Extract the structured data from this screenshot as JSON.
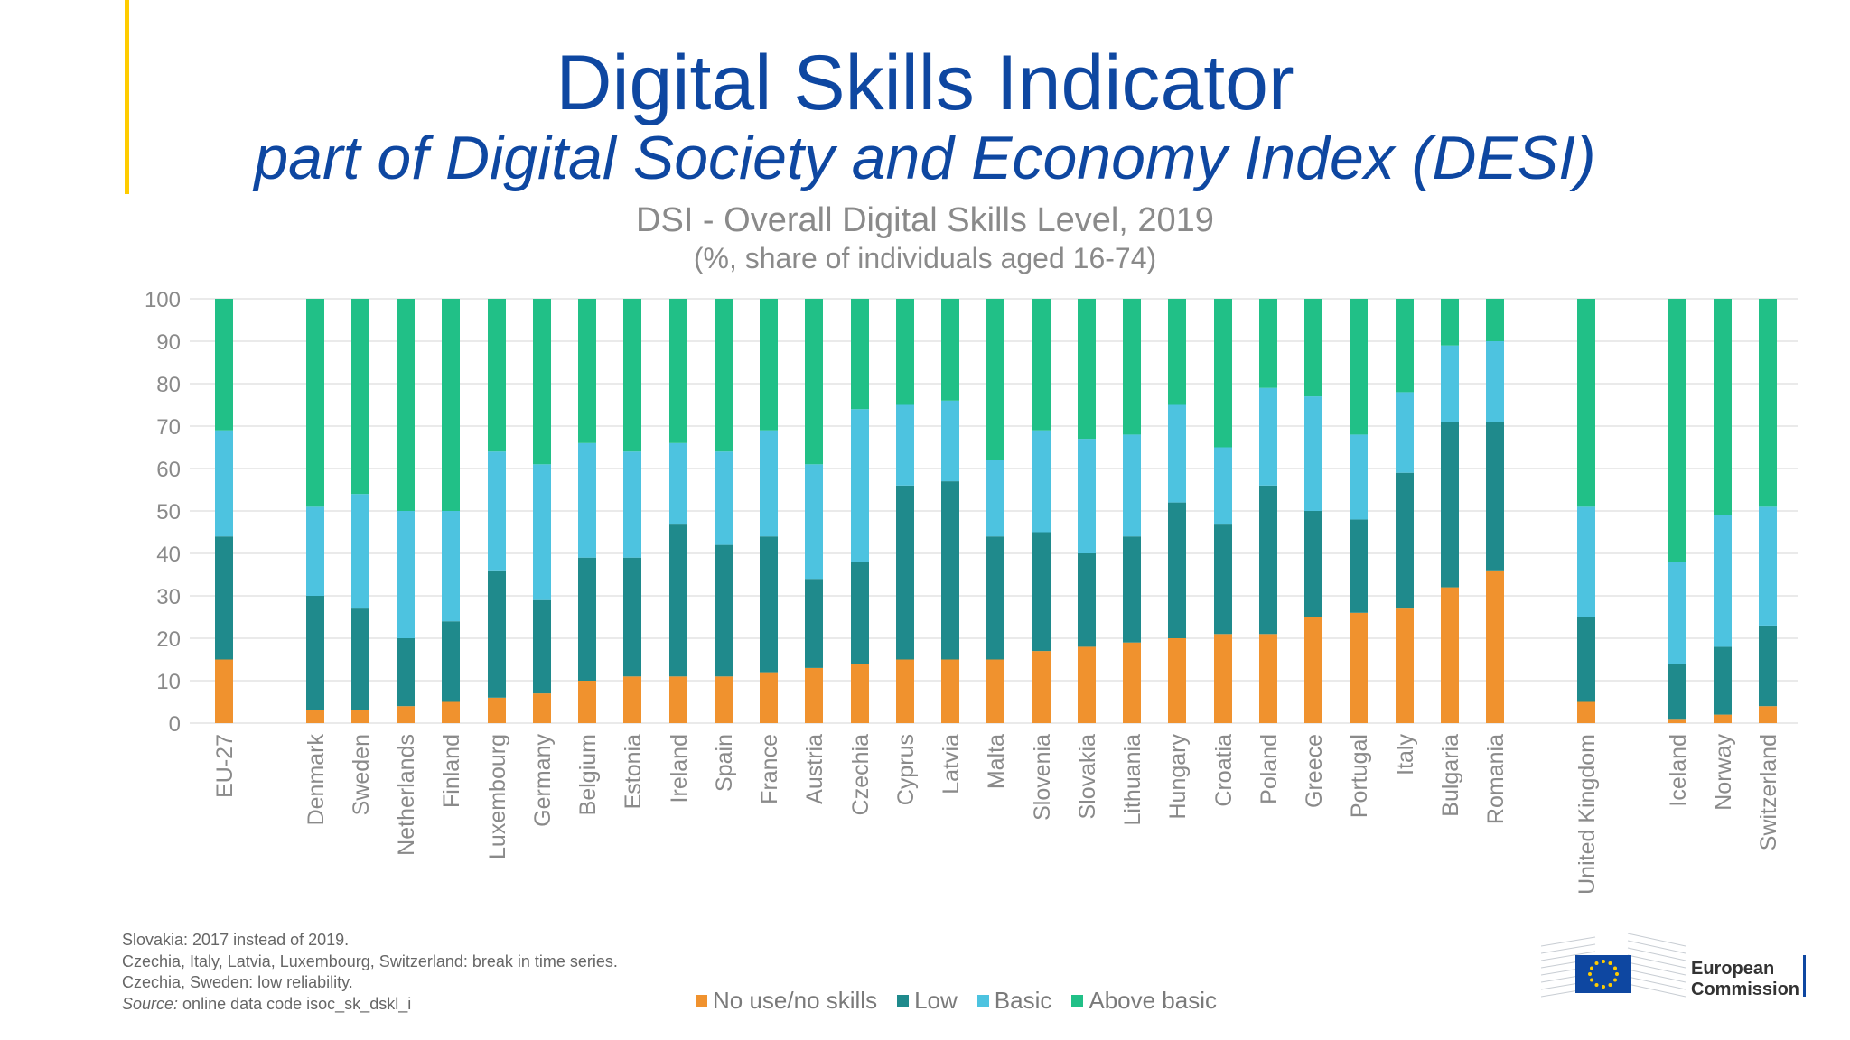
{
  "header": {
    "title": "Digital Skills Indicator",
    "subtitle": "part of Digital Society and Economy Index (DESI)"
  },
  "colors": {
    "accent_bar": "#ffcc00",
    "title": "#0e47a1"
  },
  "chart_data": {
    "type": "bar",
    "stacked": true,
    "title": "DSI - Overall Digital Skills Level, 2019",
    "unit_label": "(%, share of individuals aged 16-74)",
    "xlabel": "",
    "ylabel": "",
    "ylim": [
      0,
      100
    ],
    "yticks": [
      0,
      10,
      20,
      30,
      40,
      50,
      60,
      70,
      80,
      90,
      100
    ],
    "grid": true,
    "legend_position": "bottom",
    "categories": [
      "EU-27",
      "Denmark",
      "Sweden",
      "Netherlands",
      "Finland",
      "Luxembourg",
      "Germany",
      "Belgium",
      "Estonia",
      "Ireland",
      "Spain",
      "France",
      "Austria",
      "Czechia",
      "Cyprus",
      "Latvia",
      "Malta",
      "Slovenia",
      "Slovakia",
      "Lithuania",
      "Hungary",
      "Croatia",
      "Poland",
      "Greece",
      "Portugal",
      "Italy",
      "Bulgaria",
      "Romania",
      "United Kingdom",
      "Iceland",
      "Norway",
      "Switzerland"
    ],
    "series": [
      {
        "name": "No use/no skills",
        "color": "#f0922e",
        "values": [
          15,
          3,
          3,
          4,
          5,
          6,
          7,
          10,
          11,
          11,
          11,
          12,
          13,
          14,
          15,
          15,
          15,
          17,
          18,
          19,
          20,
          21,
          21,
          25,
          26,
          27,
          32,
          36,
          5,
          1,
          2,
          4
        ]
      },
      {
        "name": "Low",
        "color": "#1f8a8c",
        "values": [
          29,
          27,
          24,
          16,
          19,
          30,
          22,
          29,
          28,
          36,
          31,
          32,
          21,
          24,
          41,
          42,
          29,
          28,
          22,
          25,
          32,
          26,
          35,
          25,
          22,
          32,
          39,
          35,
          20,
          13,
          16,
          19
        ]
      },
      {
        "name": "Basic",
        "color": "#4dc3e0",
        "values": [
          25,
          21,
          27,
          30,
          26,
          28,
          32,
          27,
          25,
          19,
          22,
          25,
          27,
          36,
          19,
          19,
          18,
          24,
          27,
          24,
          23,
          18,
          23,
          27,
          20,
          19,
          18,
          19,
          26,
          24,
          31,
          28
        ]
      },
      {
        "name": "Above basic",
        "color": "#21c087",
        "values": [
          31,
          49,
          46,
          50,
          50,
          36,
          39,
          34,
          36,
          34,
          36,
          31,
          39,
          26,
          25,
          24,
          38,
          31,
          33,
          32,
          25,
          35,
          21,
          23,
          32,
          22,
          11,
          10,
          49,
          62,
          51,
          49
        ]
      }
    ]
  },
  "notes": {
    "line1": "Slovakia: 2017 instead of 2019.",
    "line2": "Czechia, Italy, Latvia, Luxembourg, Switzerland: break in time series.",
    "line3": "Czechia, Sweden: low reliability.",
    "source_label": "Source:",
    "source_text": " online data code isoc_sk_dskl_i"
  },
  "logo": {
    "line1": "European",
    "line2": "Commission",
    "icon": "eu-flag-icon"
  }
}
